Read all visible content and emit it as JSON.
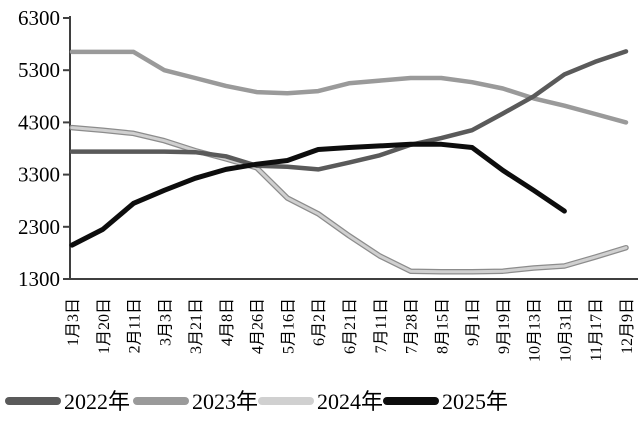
{
  "chart_data": {
    "type": "line",
    "title": "",
    "xlabel": "",
    "ylabel": "",
    "grid": false,
    "legend_position": "bottom",
    "ylim": [
      1300,
      6300
    ],
    "yticks": [
      6300,
      5300,
      4300,
      3300,
      2300,
      1300
    ],
    "categories": [
      "1月3日",
      "1月20日",
      "2月11日",
      "3月3日",
      "3月21日",
      "4月8日",
      "4月26日",
      "5月16日",
      "6月2日",
      "6月21日",
      "7月11日",
      "7月28日",
      "8月15日",
      "9月1日",
      "9月19日",
      "10月13日",
      "10月31日",
      "11月17日",
      "12月9日"
    ],
    "series": [
      {
        "name": "2022年",
        "color": "#5a5a5a",
        "width": 4.5,
        "values": [
          3740,
          3740,
          3740,
          3740,
          3730,
          3650,
          3470,
          3450,
          3400,
          3530,
          3670,
          3870,
          4000,
          4150,
          4470,
          4800,
          5220,
          5460,
          5660
        ]
      },
      {
        "name": "2023年",
        "color": "#9a9a9a",
        "width": 4.5,
        "values": [
          5650,
          5650,
          5650,
          5300,
          5150,
          5000,
          4880,
          4860,
          4900,
          5050,
          5100,
          5150,
          5150,
          5070,
          4950,
          4760,
          4620,
          4460,
          4300
        ]
      },
      {
        "name": "2024年",
        "color": "#d0d0d0",
        "outline_color": "#8c8c8c",
        "width": 3,
        "values": [
          4200,
          4150,
          4090,
          3950,
          3760,
          3600,
          3430,
          2850,
          2550,
          2130,
          1740,
          1450,
          1440,
          1440,
          1450,
          1510,
          1550,
          1720,
          1900
        ]
      },
      {
        "name": "2025年",
        "color": "#0d0d0d",
        "width": 5,
        "values": [
          1950,
          2250,
          2750,
          3000,
          3230,
          3400,
          3500,
          3570,
          3780,
          3820,
          3850,
          3880,
          3880,
          3820,
          3380,
          3000,
          2600,
          null,
          null
        ]
      }
    ],
    "axis_color": "#3f3f3f",
    "tick_label_color": "#000000"
  }
}
